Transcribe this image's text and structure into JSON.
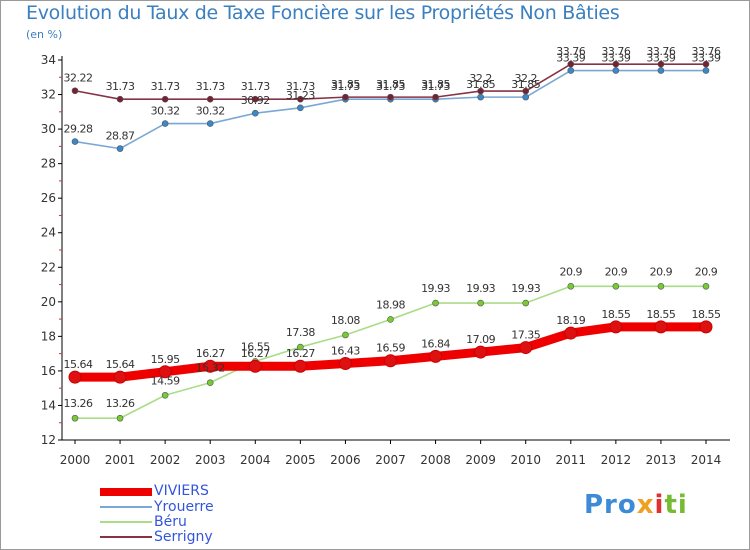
{
  "header": {
    "title": "Evolution du Taux de Taxe Foncière sur les Propriétés Non Bâties",
    "unit": "(en %)"
  },
  "logo": {
    "text": "Proxiti"
  },
  "colors": {
    "axis": "#000000",
    "grid": "#e0e0e0",
    "label": "#333333",
    "title": "#3a7fc0"
  },
  "chart_data": {
    "type": "line",
    "title": "Evolution du Taux de Taxe Foncière sur les Propriétés Non Bâties",
    "ylabel": "(en %)",
    "xlabel": "",
    "x": [
      "2000",
      "2001",
      "2002",
      "2003",
      "2004",
      "2005",
      "2006",
      "2007",
      "2008",
      "2009",
      "2010",
      "2011",
      "2012",
      "2013",
      "2014"
    ],
    "ylim": [
      12,
      34
    ],
    "yticks": [
      12,
      14,
      16,
      18,
      20,
      22,
      24,
      26,
      28,
      30,
      32,
      34
    ],
    "grid": false,
    "legend_position": "bottom-left",
    "series": [
      {
        "name": "VIVIERS",
        "color": "#ee0000",
        "marker_color": "#dd1111",
        "values": [
          15.64,
          15.64,
          15.95,
          16.27,
          16.27,
          16.27,
          16.43,
          16.59,
          16.84,
          17.09,
          17.35,
          18.19,
          18.55,
          18.55,
          18.55
        ],
        "labels": [
          "15.64",
          "15.64",
          "15.95",
          "16.27",
          "16.27",
          "16.27",
          "16.43",
          "16.59",
          "16.84",
          "17.09",
          "17.35",
          "18.19",
          "18.55",
          "18.55",
          "18.55"
        ]
      },
      {
        "name": "Yrouerre",
        "color": "#7aa8d4",
        "marker_color": "#3a88cc",
        "values": [
          29.28,
          28.87,
          30.32,
          30.32,
          30.92,
          31.23,
          31.73,
          31.73,
          31.73,
          31.85,
          31.85,
          33.39,
          33.39,
          33.39,
          33.39
        ],
        "labels": [
          "29.28",
          "28.87",
          "30.32",
          "30.32",
          "30.92",
          "31.23",
          "31.73",
          "31.73",
          "31.73",
          "31.85",
          "31.85",
          "33.39",
          "33.39",
          "33.39",
          "33.39"
        ]
      },
      {
        "name": "Béru",
        "color": "#aadd88",
        "marker_color": "#77cc33",
        "values": [
          13.26,
          13.26,
          14.59,
          15.32,
          16.55,
          17.38,
          18.08,
          18.98,
          19.93,
          19.93,
          19.93,
          20.9,
          20.9,
          20.9,
          20.9
        ],
        "labels": [
          "13.26",
          "13.26",
          "14.59",
          "15.32",
          "16.55",
          "17.38",
          "18.08",
          "18.98",
          "19.93",
          "19.93",
          "19.93",
          "20.9",
          "20.9",
          "20.9",
          "20.9"
        ]
      },
      {
        "name": "Serrigny",
        "color": "#883344",
        "marker_color": "#772233",
        "values": [
          32.22,
          31.73,
          31.73,
          31.73,
          31.73,
          31.73,
          31.85,
          31.85,
          31.85,
          32.2,
          32.2,
          33.76,
          33.76,
          33.76,
          33.76
        ],
        "labels": [
          "32.22",
          "31.73",
          "31.73",
          "31.73",
          "31.73",
          "31.73",
          "31.85",
          "31.85",
          "31.85",
          "32.2",
          "32.2",
          "33.76",
          "33.76",
          "33.76",
          "33.76"
        ]
      }
    ]
  }
}
